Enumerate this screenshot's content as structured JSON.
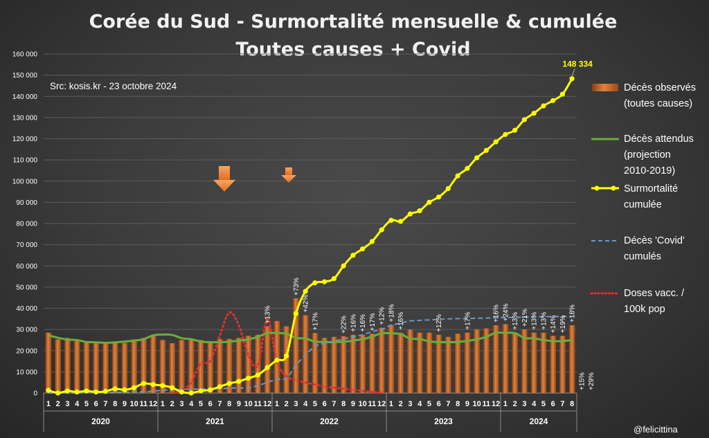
{
  "chart_data": {
    "type": "bar+line",
    "title": "Corée du Sud - Surmortalité mensuelle & cumulée",
    "subtitle": "Toutes causes + Covid",
    "source": "Src: kosis.kr - 23 octobre 2024",
    "credit": "@felicittina",
    "ylim": [
      0,
      160000
    ],
    "yticks": [
      "0",
      "10 000",
      "20 000",
      "30 000",
      "40 000",
      "50 000",
      "60 000",
      "70 000",
      "80 000",
      "90 000",
      "100 000",
      "110 000",
      "120 000",
      "130 000",
      "140 000",
      "150 000",
      "160 000"
    ],
    "years": [
      "2020",
      "2021",
      "2022",
      "2023",
      "2024"
    ],
    "months_per_year": [
      12,
      12,
      12,
      12,
      8
    ],
    "month_labels": [
      "1",
      "2",
      "3",
      "4",
      "5",
      "6",
      "7",
      "8",
      "9",
      "10",
      "11",
      "12",
      "1",
      "2",
      "3",
      "4",
      "5",
      "6",
      "7",
      "8",
      "9",
      "10",
      "11",
      "12",
      "1",
      "2",
      "3",
      "4",
      "5",
      "6",
      "7",
      "8",
      "9",
      "10",
      "11",
      "12",
      "1",
      "2",
      "3",
      "4",
      "5",
      "6",
      "7",
      "8",
      "9",
      "10",
      "11",
      "12",
      "1",
      "2",
      "3",
      "4",
      "5",
      "6",
      "7",
      "8"
    ],
    "series": [
      {
        "name": "Décès observés (toutes causes)",
        "type": "bar",
        "color": "#c8682a",
        "values": [
          28500,
          25300,
          26000,
          24500,
          24500,
          23400,
          23600,
          24000,
          23600,
          25300,
          26000,
          27000,
          25000,
          23500,
          25000,
          25000,
          25000,
          24000,
          25500,
          25500,
          26000,
          27000,
          27500,
          31500,
          34000,
          31500,
          44700,
          36700,
          28300,
          26000,
          26500,
          26800,
          27500,
          27500,
          28000,
          30800,
          32200,
          28500,
          30000,
          28500,
          28500,
          27500,
          26500,
          28000,
          28500,
          30000,
          30500,
          32000,
          32500,
          28500,
          30000,
          28500,
          28500,
          27000,
          27000,
          32000
        ]
      },
      {
        "name": "Décès attendus (projection 2010-2019)",
        "type": "line",
        "color": "#6aae3c",
        "values": [
          27200,
          26100,
          25200,
          25000,
          24100,
          23900,
          23700,
          23900,
          24300,
          24700,
          25400,
          27200,
          27600,
          27400,
          25900,
          25400,
          24300,
          24000,
          24000,
          24200,
          24700,
          25300,
          26500,
          28300,
          28300,
          28000,
          26000,
          25700,
          24300,
          24100,
          24000,
          24200,
          24700,
          25400,
          26600,
          28200,
          28200,
          27800,
          25700,
          25500,
          24400,
          24000,
          24000,
          24100,
          24600,
          25300,
          26500,
          28400,
          28400,
          28300,
          26000,
          25800,
          25000,
          24500,
          24500,
          25000
        ]
      },
      {
        "name": "Surmortalité cumulée",
        "type": "line",
        "color": "#ffff00",
        "values": [
          1300,
          0,
          1000,
          500,
          1000,
          500,
          800,
          2000,
          1500,
          2500,
          4500,
          4000,
          3500,
          2500,
          500,
          0,
          1000,
          1500,
          3000,
          4500,
          5500,
          7000,
          8500,
          12000,
          15500,
          17500,
          37500,
          48000,
          52000,
          52500,
          54000,
          60000,
          65000,
          68000,
          71500,
          77000,
          81500,
          81000,
          84500,
          86000,
          90000,
          92500,
          96500,
          102500,
          106000,
          111000,
          114500,
          118500,
          122000,
          124000,
          129000,
          132000,
          135500,
          138000,
          141000,
          148334
        ]
      },
      {
        "name": "Décès 'Covid' cumulés",
        "type": "line",
        "dash": true,
        "color": "#6b97c8",
        "values": [
          0,
          0,
          0,
          0,
          200,
          300,
          300,
          300,
          400,
          500,
          600,
          900,
          1300,
          1500,
          1700,
          1800,
          1900,
          2000,
          2100,
          2300,
          2400,
          2500,
          3500,
          5000,
          6500,
          7000,
          13000,
          18000,
          22000,
          23500,
          24500,
          25500,
          26500,
          27500,
          29000,
          30000,
          32000,
          33000,
          34000,
          34300,
          34500,
          34700,
          35000,
          35100,
          35200,
          35300,
          35400,
          35500,
          35600,
          35700,
          35800,
          35900,
          36000,
          36100,
          36100,
          36100
        ]
      },
      {
        "name": "Doses vacc. / 100k pop",
        "type": "line",
        "dotted": true,
        "color": "#e03030",
        "values": [
          null,
          null,
          null,
          null,
          null,
          null,
          null,
          null,
          null,
          null,
          null,
          null,
          null,
          0,
          1000,
          5000,
          14000,
          15000,
          27000,
          38000,
          32000,
          18000,
          13000,
          35000,
          15000,
          8000,
          6000,
          5000,
          4000,
          3000,
          2500,
          2000,
          1500,
          1000,
          500,
          0
        ]
      }
    ],
    "pct_labels": [
      {
        "month_index": 23,
        "label": "+13%"
      },
      {
        "month_index": 26,
        "label": "+73%"
      },
      {
        "month_index": 27,
        "label": "+42%"
      },
      {
        "month_index": 28,
        "label": "+17%"
      },
      {
        "month_index": 31,
        "label": "+22%"
      },
      {
        "month_index": 32,
        "label": "+16%"
      },
      {
        "month_index": 33,
        "label": "+16%"
      },
      {
        "month_index": 34,
        "label": "+17%"
      },
      {
        "month_index": 35,
        "label": "+12%"
      },
      {
        "month_index": 36,
        "label": "+18%"
      },
      {
        "month_index": 37,
        "label": "+16%"
      },
      {
        "month_index": 41,
        "label": "+12%"
      },
      {
        "month_index": 44,
        "label": "+17%"
      },
      {
        "month_index": 47,
        "label": "+16%"
      },
      {
        "month_index": 48,
        "label": "+24%"
      },
      {
        "month_index": 49,
        "label": "+13%"
      },
      {
        "month_index": 50,
        "label": "+21%"
      },
      {
        "month_index": 51,
        "label": "+13%"
      },
      {
        "month_index": 52,
        "label": "+13%"
      },
      {
        "month_index": 53,
        "label": "+14%"
      },
      {
        "month_index": 54,
        "label": "+19%"
      },
      {
        "month_index": 55,
        "label": "+18%"
      },
      {
        "month_index": 56,
        "label": "+15%"
      },
      {
        "month_index": 57,
        "label": "+29%"
      }
    ],
    "final_value_label": "148 334",
    "legend_position": "right",
    "grid": true
  },
  "legend": [
    {
      "line1": "Décès observés",
      "line2": "(toutes causes)",
      "line3": ""
    },
    {
      "line1": "Décès attendus",
      "line2": "(projection",
      "line3": "2010-2019)"
    },
    {
      "line1": "Surmortalité",
      "line2": "cumulée",
      "line3": ""
    },
    {
      "line1": "Décès 'Covid'",
      "line2": "cumulés",
      "line3": ""
    },
    {
      "line1": "Doses vacc. /",
      "line2": "100k pop",
      "line3": ""
    }
  ]
}
